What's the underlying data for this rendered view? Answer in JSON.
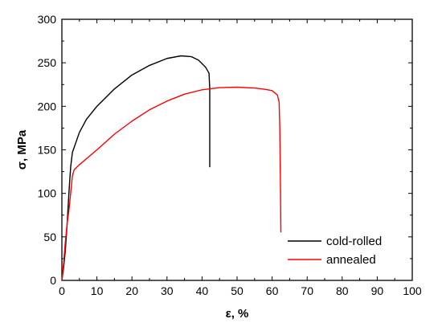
{
  "chart_data": {
    "type": "line",
    "xlabel": "ε, %",
    "ylabel": "σ, MPa",
    "xlim": [
      0,
      100
    ],
    "ylim": [
      0,
      300
    ],
    "xticks": [
      0,
      10,
      20,
      30,
      40,
      50,
      60,
      70,
      80,
      90,
      100
    ],
    "yticks": [
      0,
      50,
      100,
      150,
      200,
      250,
      300
    ],
    "grid": false,
    "legend_position": "bottom-right",
    "series": [
      {
        "name": "cold-rolled",
        "color": "#000000",
        "points": [
          [
            0,
            0
          ],
          [
            0.5,
            15
          ],
          [
            1,
            35
          ],
          [
            1.5,
            65
          ],
          [
            2,
            100
          ],
          [
            2.5,
            130
          ],
          [
            3,
            147
          ],
          [
            5,
            170
          ],
          [
            7,
            185
          ],
          [
            10,
            200
          ],
          [
            15,
            220
          ],
          [
            20,
            236
          ],
          [
            25,
            247
          ],
          [
            30,
            255
          ],
          [
            34,
            258
          ],
          [
            37,
            257
          ],
          [
            39,
            253
          ],
          [
            41,
            245
          ],
          [
            42,
            238
          ],
          [
            42.2,
            220
          ],
          [
            42.2,
            175
          ],
          [
            42.2,
            130
          ]
        ]
      },
      {
        "name": "annealed",
        "color": "#ff0000",
        "points": [
          [
            0,
            0
          ],
          [
            0.5,
            20
          ],
          [
            1,
            45
          ],
          [
            1.5,
            65
          ],
          [
            2,
            80
          ],
          [
            2.5,
            100
          ],
          [
            3,
            120
          ],
          [
            3.5,
            127
          ],
          [
            5,
            133
          ],
          [
            10,
            150
          ],
          [
            15,
            168
          ],
          [
            20,
            183
          ],
          [
            25,
            196
          ],
          [
            30,
            206
          ],
          [
            35,
            214
          ],
          [
            40,
            219
          ],
          [
            45,
            221.5
          ],
          [
            50,
            222
          ],
          [
            55,
            221
          ],
          [
            58,
            219.5
          ],
          [
            60,
            218
          ],
          [
            61.5,
            213
          ],
          [
            62,
            205
          ],
          [
            62.2,
            175
          ],
          [
            62.4,
            100
          ],
          [
            62.5,
            55
          ]
        ]
      }
    ]
  }
}
